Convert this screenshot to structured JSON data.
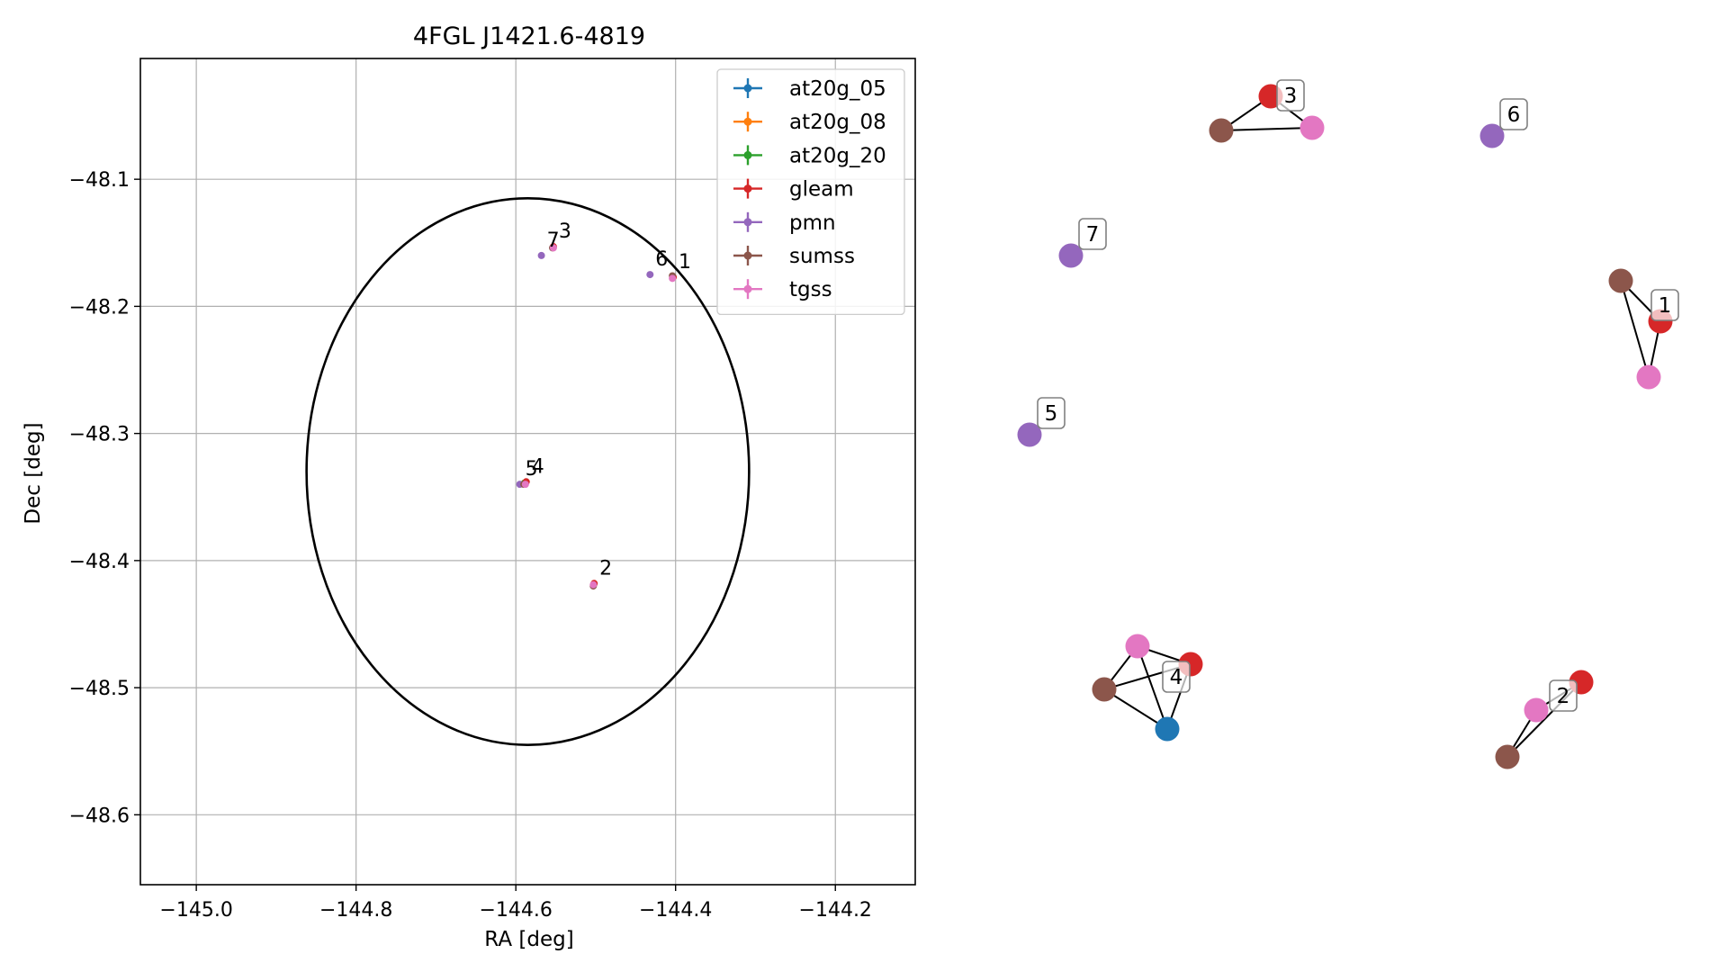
{
  "chart_data": [
    {
      "type": "scatter",
      "title": "4FGL J1421.6-4819",
      "xlabel": "RA [deg]",
      "ylabel": "Dec [deg]",
      "xlim": [
        -145.07,
        -144.1
      ],
      "ylim": [
        -48.655,
        -48.005
      ],
      "xticks": [
        -145.0,
        -144.8,
        -144.6,
        -144.4,
        -144.2
      ],
      "yticks": [
        -48.1,
        -48.2,
        -48.3,
        -48.4,
        -48.5,
        -48.6
      ],
      "xtick_labels": [
        "−145.0",
        "−144.8",
        "−144.6",
        "−144.4",
        "−144.2"
      ],
      "ytick_labels": [
        "−48.1",
        "−48.2",
        "−48.3",
        "−48.4",
        "−48.5",
        "−48.6"
      ],
      "grid": true,
      "legend_position": "top-right",
      "ellipse": {
        "center": [
          -144.585,
          -48.33
        ],
        "semi_axis_ra": 0.277,
        "semi_axis_dec": 0.215,
        "color": "#000000"
      },
      "series": [
        {
          "name": "at20g_05",
          "color": "#1f77b4",
          "points": [
            [
              -144.589,
              -48.339
            ]
          ]
        },
        {
          "name": "at20g_08",
          "color": "#ff7f0e",
          "points": [
            [
              -144.589,
              -48.339
            ]
          ]
        },
        {
          "name": "at20g_20",
          "color": "#2ca02c",
          "points": [
            [
              -144.589,
              -48.339
            ]
          ]
        },
        {
          "name": "gleam",
          "color": "#d62728",
          "points": [
            [
              -144.403,
              -48.177
            ],
            [
              -144.502,
              -48.418
            ],
            [
              -144.553,
              -48.153
            ],
            [
              -144.587,
              -48.338
            ]
          ]
        },
        {
          "name": "pmn",
          "color": "#9467bd",
          "points": [
            [
              -144.432,
              -48.175
            ],
            [
              -144.568,
              -48.16
            ],
            [
              -144.595,
              -48.34
            ]
          ]
        },
        {
          "name": "sumss",
          "color": "#8c564b",
          "points": [
            [
              -144.404,
              -48.176
            ],
            [
              -144.503,
              -48.42
            ],
            [
              -144.554,
              -48.154
            ],
            [
              -144.59,
              -48.34
            ]
          ]
        },
        {
          "name": "tgss",
          "color": "#e377c2",
          "points": [
            [
              -144.404,
              -48.178
            ],
            [
              -144.503,
              -48.419
            ],
            [
              -144.553,
              -48.154
            ],
            [
              -144.588,
              -48.34
            ]
          ]
        }
      ],
      "source_labels": [
        {
          "text": "1",
          "x": -144.403,
          "y": -48.177
        },
        {
          "text": "2",
          "x": -144.502,
          "y": -48.418
        },
        {
          "text": "3",
          "x": -144.553,
          "y": -48.153
        },
        {
          "text": "4",
          "x": -144.587,
          "y": -48.338
        },
        {
          "text": "5",
          "x": -144.595,
          "y": -48.34
        },
        {
          "text": "6",
          "x": -144.432,
          "y": -48.175
        },
        {
          "text": "7",
          "x": -144.568,
          "y": -48.16
        }
      ]
    },
    {
      "type": "network",
      "nodes": [
        {
          "id": "1-sumss",
          "group": "1",
          "color": "#8c564b"
        },
        {
          "id": "1-gleam",
          "group": "1",
          "color": "#d62728"
        },
        {
          "id": "1-tgss",
          "group": "1",
          "color": "#e377c2"
        },
        {
          "id": "2-gleam",
          "group": "2",
          "color": "#d62728"
        },
        {
          "id": "2-tgss",
          "group": "2",
          "color": "#e377c2"
        },
        {
          "id": "2-sumss",
          "group": "2",
          "color": "#8c564b"
        },
        {
          "id": "3-gleam",
          "group": "3",
          "color": "#d62728"
        },
        {
          "id": "3-sumss",
          "group": "3",
          "color": "#8c564b"
        },
        {
          "id": "3-tgss",
          "group": "3",
          "color": "#e377c2"
        },
        {
          "id": "4-tgss",
          "group": "4",
          "color": "#e377c2"
        },
        {
          "id": "4-gleam",
          "group": "4",
          "color": "#d62728"
        },
        {
          "id": "4-sumss",
          "group": "4",
          "color": "#8c564b"
        },
        {
          "id": "4-at20g",
          "group": "4",
          "color": "#1f77b4"
        },
        {
          "id": "5-pmn",
          "group": "5",
          "color": "#9467bd"
        },
        {
          "id": "6-pmn",
          "group": "6",
          "color": "#9467bd"
        },
        {
          "id": "7-pmn",
          "group": "7",
          "color": "#9467bd"
        }
      ],
      "edges": [
        [
          "1-sumss",
          "1-gleam"
        ],
        [
          "1-sumss",
          "1-tgss"
        ],
        [
          "1-gleam",
          "1-tgss"
        ],
        [
          "2-gleam",
          "2-tgss"
        ],
        [
          "2-tgss",
          "2-sumss"
        ],
        [
          "2-gleam",
          "2-sumss"
        ],
        [
          "3-gleam",
          "3-sumss"
        ],
        [
          "3-gleam",
          "3-tgss"
        ],
        [
          "3-sumss",
          "3-tgss"
        ],
        [
          "4-tgss",
          "4-gleam"
        ],
        [
          "4-tgss",
          "4-sumss"
        ],
        [
          "4-tgss",
          "4-at20g"
        ],
        [
          "4-gleam",
          "4-sumss"
        ],
        [
          "4-gleam",
          "4-at20g"
        ],
        [
          "4-sumss",
          "4-at20g"
        ]
      ],
      "labels": [
        "1",
        "2",
        "3",
        "4",
        "5",
        "6",
        "7"
      ]
    }
  ]
}
